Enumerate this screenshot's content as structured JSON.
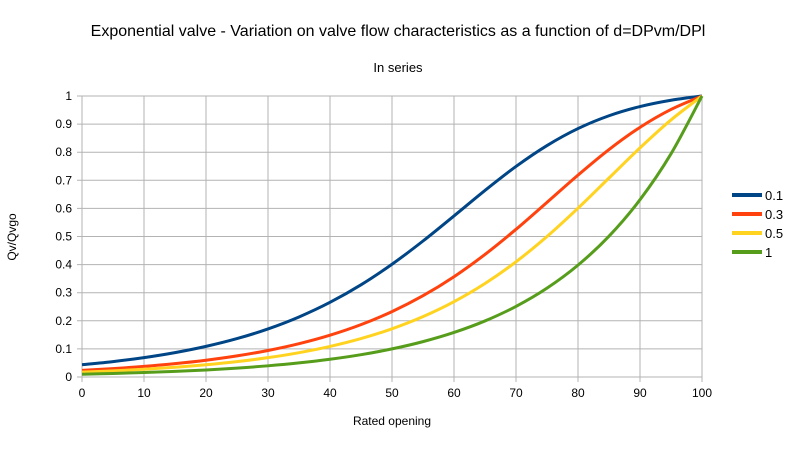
{
  "chart_data": {
    "type": "line",
    "title": "Exponential valve - Variation on valve flow characteristics as a function of d=DPvm/DPl",
    "subtitle": "In series",
    "xlabel": "Rated opening",
    "ylabel": "Qv/Qvgo",
    "xlim": [
      0,
      100
    ],
    "ylim": [
      0,
      1
    ],
    "xticks": [
      0,
      10,
      20,
      30,
      40,
      50,
      60,
      70,
      80,
      90,
      100
    ],
    "yticks": [
      0,
      0.1,
      0.2,
      0.3,
      0.4,
      0.5,
      0.6,
      0.7,
      0.8,
      0.9,
      1
    ],
    "grid": true,
    "legend_position": "right",
    "x": [
      0,
      5,
      10,
      15,
      20,
      25,
      30,
      35,
      40,
      45,
      50,
      55,
      60,
      65,
      70,
      75,
      80,
      85,
      90,
      95,
      100
    ],
    "series": [
      {
        "name": "0.1",
        "color": "#004586",
        "values": [
          0.0436,
          0.0548,
          0.0689,
          0.0867,
          0.1089,
          0.1366,
          0.1711,
          0.2137,
          0.2657,
          0.3281,
          0.4013,
          0.484,
          0.5733,
          0.6639,
          0.7493,
          0.8237,
          0.8841,
          0.9297,
          0.9624,
          0.9849,
          1
        ]
      },
      {
        "name": "0.3",
        "color": "#ff420e",
        "values": [
          0.0238,
          0.03,
          0.0377,
          0.0475,
          0.0597,
          0.0751,
          0.0944,
          0.1186,
          0.1488,
          0.1864,
          0.2327,
          0.2892,
          0.3569,
          0.4362,
          0.5255,
          0.6216,
          0.7185,
          0.8095,
          0.8885,
          0.9521,
          1
        ]
      },
      {
        "name": "0.5",
        "color": "#ffd320",
        "values": [
          0.0173,
          0.0218,
          0.0274,
          0.0345,
          0.0435,
          0.0547,
          0.0688,
          0.0866,
          0.1088,
          0.1367,
          0.1715,
          0.2147,
          0.2679,
          0.3326,
          0.41,
          0.5,
          0.6008,
          0.7082,
          0.8154,
          0.9148,
          1
        ]
      },
      {
        "name": "1",
        "color": "#579d1c",
        "values": [
          0.01,
          0.0126,
          0.0158,
          0.02,
          0.0251,
          0.0316,
          0.0398,
          0.0501,
          0.0631,
          0.0794,
          0.1,
          0.1259,
          0.1585,
          0.1995,
          0.2512,
          0.3162,
          0.3981,
          0.5012,
          0.631,
          0.7943,
          1
        ]
      }
    ]
  }
}
